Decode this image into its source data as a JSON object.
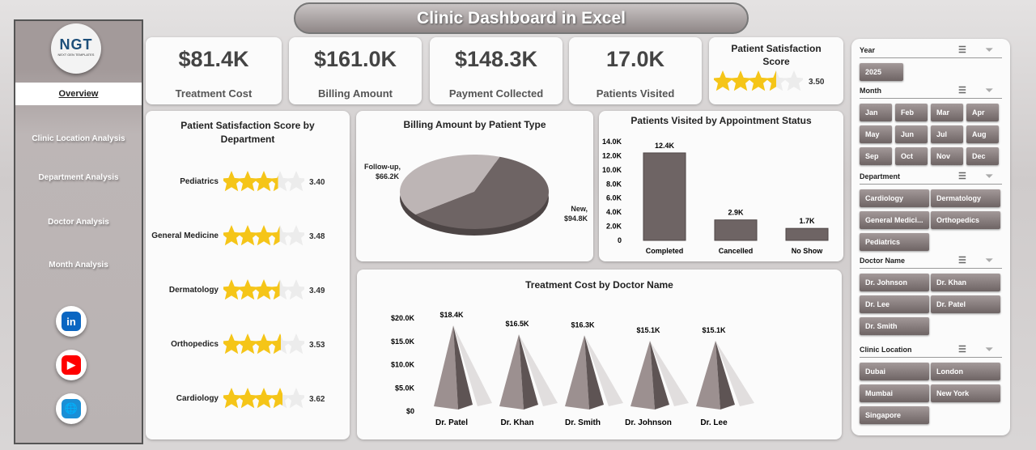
{
  "title": "Clinic Dashboard in Excel",
  "sidebar": {
    "logo": "NGT",
    "logo_sub": "NEXT GEN TEMPLATES",
    "items": [
      {
        "label": "Overview",
        "active": true
      },
      {
        "label": "Clinic Location Analysis"
      },
      {
        "label": "Department Analysis"
      },
      {
        "label": "Doctor Analysis"
      },
      {
        "label": "Month Analysis"
      }
    ],
    "social": [
      {
        "icon": "linkedin-icon",
        "label": "in",
        "color": "#0a66c2"
      },
      {
        "icon": "youtube-icon",
        "label": "▶",
        "color": "#ff0000"
      },
      {
        "icon": "globe-icon",
        "label": "🌐",
        "color": "#1a8fd6"
      }
    ]
  },
  "kpis": [
    {
      "value": "$81.4K",
      "label": "Treatment Cost"
    },
    {
      "value": "$161.0K",
      "label": "Billing Amount"
    },
    {
      "value": "$148.3K",
      "label": "Payment Collected"
    },
    {
      "value": "17.0K",
      "label": "Patients Visited"
    }
  ],
  "satisfaction": {
    "label": "Patient Satisfaction Score",
    "value": "3.50",
    "rating": 3.5
  },
  "chart_data": [
    {
      "type": "bar",
      "title": "Patient Satisfaction Score by Department",
      "categories": [
        "Pediatrics",
        "General Medicine",
        "Dermatology",
        "Orthopedics",
        "Cardiology"
      ],
      "values": [
        3.4,
        3.48,
        3.49,
        3.53,
        3.62
      ],
      "labels": [
        "3.40",
        "3.48",
        "3.49",
        "3.53",
        "3.62"
      ],
      "max": 5
    },
    {
      "type": "pie",
      "title": "Billing Amount by Patient Type",
      "categories": [
        "Follow-up",
        "New"
      ],
      "values": [
        66.2,
        94.8
      ],
      "labels": [
        "Follow-up, $66.2K",
        "New, $94.8K"
      ],
      "colors": [
        "#bdb5b5",
        "#6e6464"
      ]
    },
    {
      "type": "bar",
      "title": "Patients Visited by Appointment Status",
      "categories": [
        "Completed",
        "Cancelled",
        "No Show"
      ],
      "values": [
        12.4,
        2.9,
        1.7
      ],
      "labels": [
        "12.4K",
        "2.9K",
        "1.7K"
      ],
      "yticks": [
        "0",
        "2.0K",
        "4.0K",
        "6.0K",
        "8.0K",
        "10.0K",
        "12.0K",
        "14.0K"
      ],
      "ylim": [
        0,
        14
      ]
    },
    {
      "type": "bar",
      "title": "Treatment Cost by Doctor Name",
      "categories": [
        "Dr. Patel",
        "Dr. Khan",
        "Dr. Smith",
        "Dr. Johnson",
        "Dr. Lee"
      ],
      "values": [
        18.4,
        16.5,
        16.3,
        15.1,
        15.1
      ],
      "labels": [
        "$18.4K",
        "$16.5K",
        "$16.3K",
        "$15.1K",
        "$15.1K"
      ],
      "yticks": [
        "$0",
        "$5.0K",
        "$10.0K",
        "$15.0K",
        "$20.0K"
      ],
      "ylim": [
        0,
        20
      ]
    }
  ],
  "slicers": [
    {
      "name": "Year",
      "items": [
        "2025"
      ]
    },
    {
      "name": "Month",
      "items": [
        "Jan",
        "Feb",
        "Mar",
        "Apr",
        "May",
        "Jun",
        "Jul",
        "Aug",
        "Sep",
        "Oct",
        "Nov",
        "Dec"
      ]
    },
    {
      "name": "Department",
      "items": [
        "Cardiology",
        "Dermatology",
        "General Medici...",
        "Orthopedics",
        "Pediatrics"
      ]
    },
    {
      "name": "Doctor Name",
      "items": [
        "Dr. Johnson",
        "Dr. Khan",
        "Dr. Lee",
        "Dr. Patel",
        "Dr. Smith"
      ]
    },
    {
      "name": "Clinic Location",
      "items": [
        "Dubai",
        "London",
        "Mumbai",
        "New York",
        "Singapore"
      ]
    }
  ]
}
